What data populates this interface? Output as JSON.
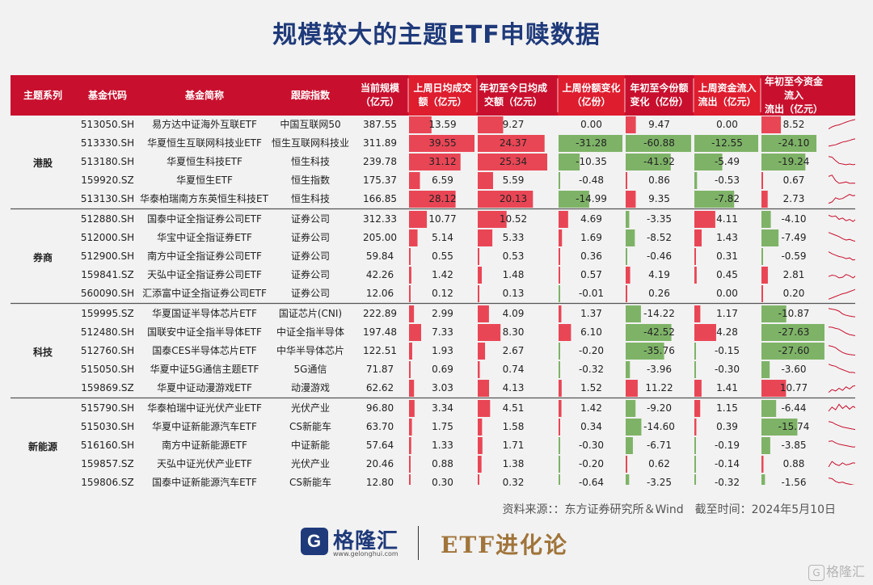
{
  "title": "规模较大的主题ETF申赎数据",
  "colors": {
    "header_bg": "#c8102e",
    "header_bg_alt": "#de1d2e",
    "pos_bar": "#e8283a",
    "neg_bar": "#6aa84f",
    "sparkline": "#c8102e",
    "title_color": "#1f3a7a",
    "brand_color": "#a0743a"
  },
  "chart_data": {
    "type": "table",
    "columns": [
      "主题系列",
      "基金代码",
      "基金简称",
      "跟踪指数",
      "当前规模\n（亿元）",
      "上周日均成交\n额（亿元）",
      "年初至今日均成\n交额（亿元）",
      "上周份额变化\n（亿份）",
      "年初至今份额\n变化（亿份）",
      "上周资金流入\n流出（亿元）",
      "年初至今资金流入\n流出（亿元）"
    ],
    "groups": [
      {
        "name": "港股",
        "rows": [
          {
            "code": "513050.SH",
            "name": "易方达中证海外互联ETF",
            "index": "中国互联网50",
            "aum": "387.55",
            "wk_turnover": "13.59",
            "ytd_turnover": "9.27",
            "wk_share": "0.00",
            "ytd_share": "9.47",
            "wk_flow": "0.00",
            "ytd_flow": "8.52",
            "trend": [
              0.2,
              0.35,
              0.45,
              0.5,
              0.6,
              0.7,
              0.78,
              0.85,
              0.9,
              0.95
            ]
          },
          {
            "code": "513330.SH",
            "name": "华夏恒生互联网科技业ETF",
            "index": "恒生互联网科技业",
            "aum": "311.89",
            "wk_turnover": "39.55",
            "ytd_turnover": "24.37",
            "wk_share": "-31.28",
            "ytd_share": "-60.88",
            "wk_flow": "-12.55",
            "ytd_flow": "-24.10",
            "trend": [
              0.3,
              0.35,
              0.4,
              0.5,
              0.6,
              0.65,
              0.72,
              0.8,
              0.85,
              0.92
            ]
          },
          {
            "code": "513180.SH",
            "name": "华夏恒生科技ETF",
            "index": "恒生科技",
            "aum": "239.78",
            "wk_turnover": "31.12",
            "ytd_turnover": "25.34",
            "wk_share": "-10.35",
            "ytd_share": "-41.92",
            "wk_flow": "-5.49",
            "ytd_flow": "-19.24",
            "trend": [
              0.9,
              0.85,
              0.6,
              0.4,
              0.35,
              0.3,
              0.35,
              0.3,
              0.35,
              0.3
            ]
          },
          {
            "code": "159920.SZ",
            "name": "华夏恒生ETF",
            "index": "恒生指数",
            "aum": "175.37",
            "wk_turnover": "6.59",
            "ytd_turnover": "5.59",
            "wk_share": "-0.48",
            "ytd_share": "0.86",
            "wk_flow": "-0.53",
            "ytd_flow": "0.67",
            "trend": [
              0.8,
              0.9,
              0.5,
              0.3,
              0.35,
              0.4,
              0.3,
              0.32,
              0.3,
              0.3
            ]
          },
          {
            "code": "513130.SH",
            "name": "华泰柏瑞南方东英恒生科技ETF",
            "index": "恒生科技",
            "aum": "166.85",
            "wk_turnover": "28.12",
            "ytd_turnover": "20.13",
            "wk_share": "-14.99",
            "ytd_share": "9.35",
            "wk_flow": "-7.82",
            "ytd_flow": "2.73",
            "trend": [
              0.2,
              0.3,
              0.6,
              0.5,
              0.55,
              0.7,
              0.85,
              0.75,
              0.8,
              0.85
            ]
          }
        ]
      },
      {
        "name": "券商",
        "rows": [
          {
            "code": "512880.SH",
            "name": "国泰中证全指证券公司ETF",
            "index": "证券公司",
            "aum": "312.33",
            "wk_turnover": "10.77",
            "ytd_turnover": "10.52",
            "wk_share": "4.69",
            "ytd_share": "-3.35",
            "wk_flow": "4.11",
            "ytd_flow": "-4.10",
            "trend": [
              0.8,
              0.7,
              0.75,
              0.5,
              0.6,
              0.4,
              0.5,
              0.35,
              0.55,
              0.4
            ]
          },
          {
            "code": "512000.SH",
            "name": "华宝中证全指证券ETF",
            "index": "证券公司",
            "aum": "205.00",
            "wk_turnover": "5.14",
            "ytd_turnover": "5.33",
            "wk_share": "1.69",
            "ytd_share": "-8.52",
            "wk_flow": "1.43",
            "ytd_flow": "-7.49",
            "trend": [
              0.9,
              0.8,
              0.7,
              0.6,
              0.45,
              0.35,
              0.4,
              0.3,
              0.25,
              0.35
            ]
          },
          {
            "code": "512900.SH",
            "name": "南方中证全指证券公司ETF",
            "index": "证券公司",
            "aum": "59.84",
            "wk_turnover": "0.55",
            "ytd_turnover": "0.53",
            "wk_share": "0.36",
            "ytd_share": "-0.46",
            "wk_flow": "0.31",
            "ytd_flow": "-0.59",
            "trend": [
              0.85,
              0.7,
              0.6,
              0.5,
              0.45,
              0.35,
              0.4,
              0.25,
              0.3,
              0.4
            ]
          },
          {
            "code": "159841.SZ",
            "name": "天弘中证全指证券公司ETF",
            "index": "证券公司",
            "aum": "42.26",
            "wk_turnover": "1.42",
            "ytd_turnover": "1.48",
            "wk_share": "0.57",
            "ytd_share": "4.19",
            "wk_flow": "0.45",
            "ytd_flow": "2.81",
            "trend": [
              0.4,
              0.5,
              0.45,
              0.3,
              0.35,
              0.55,
              0.45,
              0.3,
              0.5,
              0.7
            ]
          },
          {
            "code": "560090.SH",
            "name": "汇添富中证全指证券公司ETF",
            "index": "证券公司",
            "aum": "12.06",
            "wk_turnover": "0.12",
            "ytd_turnover": "0.13",
            "wk_share": "-0.01",
            "ytd_share": "0.26",
            "wk_flow": "0.00",
            "ytd_flow": "0.20",
            "trend": [
              0.1,
              0.2,
              0.3,
              0.4,
              0.5,
              0.55,
              0.65,
              0.75,
              0.85,
              0.95
            ]
          }
        ]
      },
      {
        "name": "科技",
        "rows": [
          {
            "code": "159995.SZ",
            "name": "华夏国证半导体芯片ETF",
            "index": "国证芯片(CNI)",
            "aum": "222.89",
            "wk_turnover": "2.99",
            "ytd_turnover": "4.09",
            "wk_share": "1.37",
            "ytd_share": "-14.22",
            "wk_flow": "1.17",
            "ytd_flow": "-10.87",
            "trend": [
              0.9,
              0.85,
              0.8,
              0.7,
              0.5,
              0.4,
              0.35,
              0.3,
              0.28,
              0.25
            ]
          },
          {
            "code": "512480.SH",
            "name": "国联安中证全指半导体ETF",
            "index": "中证全指半导体",
            "aum": "197.48",
            "wk_turnover": "7.33",
            "ytd_turnover": "8.30",
            "wk_share": "6.10",
            "ytd_share": "-42.52",
            "wk_flow": "4.28",
            "ytd_flow": "-27.63",
            "trend": [
              0.9,
              0.88,
              0.8,
              0.75,
              0.6,
              0.45,
              0.35,
              0.3,
              0.25,
              0.2
            ]
          },
          {
            "code": "512760.SH",
            "name": "国泰CES半导体芯片ETF",
            "index": "中华半导体芯片",
            "aum": "122.51",
            "wk_turnover": "1.93",
            "ytd_turnover": "2.67",
            "wk_share": "-0.20",
            "ytd_share": "-35.76",
            "wk_flow": "-0.15",
            "ytd_flow": "-27.60",
            "trend": [
              0.9,
              0.85,
              0.75,
              0.55,
              0.4,
              0.3,
              0.25,
              0.22,
              0.2,
              0.18
            ]
          },
          {
            "code": "515050.SH",
            "name": "华夏中证5G通信主题ETF",
            "index": "5G通信",
            "aum": "71.87",
            "wk_turnover": "0.69",
            "ytd_turnover": "0.74",
            "wk_share": "-0.32",
            "ytd_share": "-3.96",
            "wk_flow": "-0.30",
            "ytd_flow": "-3.60",
            "trend": [
              0.9,
              0.8,
              0.75,
              0.6,
              0.5,
              0.4,
              0.3,
              0.3,
              0.25,
              0.2
            ]
          },
          {
            "code": "159869.SZ",
            "name": "华夏中证动漫游戏ETF",
            "index": "动漫游戏",
            "aum": "62.62",
            "wk_turnover": "3.03",
            "ytd_turnover": "4.13",
            "wk_share": "1.52",
            "ytd_share": "11.22",
            "wk_flow": "1.41",
            "ytd_flow": "10.77",
            "trend": [
              0.2,
              0.4,
              0.3,
              0.5,
              0.35,
              0.6,
              0.45,
              0.65,
              0.7,
              0.9
            ]
          }
        ]
      },
      {
        "name": "新能源",
        "rows": [
          {
            "code": "515790.SH",
            "name": "华泰柏瑞中证光伏产业ETF",
            "index": "光伏产业",
            "aum": "96.80",
            "wk_turnover": "3.34",
            "ytd_turnover": "4.51",
            "wk_share": "1.42",
            "ytd_share": "-9.20",
            "wk_flow": "1.15",
            "ytd_flow": "-6.44",
            "trend": [
              0.3,
              0.6,
              0.4,
              0.8,
              0.5,
              0.7,
              0.45,
              0.65,
              0.5,
              0.6
            ]
          },
          {
            "code": "515030.SH",
            "name": "华夏中证新能源汽车ETF",
            "index": "CS新能车",
            "aum": "63.70",
            "wk_turnover": "1.75",
            "ytd_turnover": "1.58",
            "wk_share": "0.34",
            "ytd_share": "-14.60",
            "wk_flow": "0.39",
            "ytd_flow": "-15.74",
            "trend": [
              0.9,
              0.85,
              0.7,
              0.6,
              0.5,
              0.45,
              0.4,
              0.35,
              0.3,
              0.3
            ]
          },
          {
            "code": "516160.SH",
            "name": "南方中证新能源ETF",
            "index": "中证新能",
            "aum": "57.64",
            "wk_turnover": "1.33",
            "ytd_turnover": "1.71",
            "wk_share": "-0.30",
            "ytd_share": "-6.71",
            "wk_flow": "-0.19",
            "ytd_flow": "-3.85",
            "trend": [
              0.8,
              0.85,
              0.7,
              0.6,
              0.55,
              0.5,
              0.45,
              0.4,
              0.42,
              0.4
            ]
          },
          {
            "code": "159857.SZ",
            "name": "天弘中证光伏产业ETF",
            "index": "光伏产业",
            "aum": "20.46",
            "wk_turnover": "0.88",
            "ytd_turnover": "1.38",
            "wk_share": "-0.20",
            "ytd_share": "0.62",
            "wk_flow": "-0.14",
            "ytd_flow": "0.88",
            "trend": [
              0.3,
              0.7,
              0.5,
              0.4,
              0.6,
              0.45,
              0.5,
              0.6,
              0.55,
              0.7
            ]
          },
          {
            "code": "159806.SZ",
            "name": "国泰中证新能源汽车ETF",
            "index": "CS新能车",
            "aum": "12.80",
            "wk_turnover": "0.30",
            "ytd_turnover": "0.32",
            "wk_share": "-0.64",
            "ytd_share": "-3.25",
            "wk_flow": "-0.32",
            "ytd_flow": "-1.56",
            "trend": [
              0.85,
              0.8,
              0.6,
              0.5,
              0.55,
              0.45,
              0.4,
              0.35,
              0.3,
              0.3
            ]
          }
        ]
      }
    ]
  },
  "source_text": "资料来源：：东方证券研究所＆Wind　截至时间：2024年5月10日",
  "footer": {
    "logo_letter": "G",
    "logo_name": "格隆汇",
    "logo_url": "www.gelonghui.com",
    "brand": "ETF进化论"
  },
  "watermark": "格隆汇"
}
